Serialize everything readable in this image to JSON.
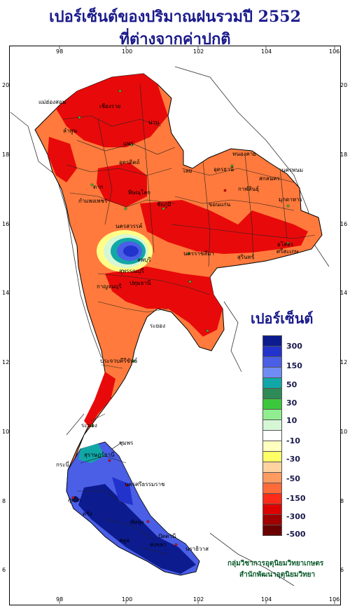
{
  "title_line1": "เปอร์เซ็นต์ของปริมาณฝนรวมปี  2552",
  "title_line2": "ที่ต่างจากค่าปกติ",
  "lon_ticks": [
    "98",
    "100",
    "102",
    "104",
    "106"
  ],
  "lat_ticks": [
    "20",
    "18",
    "16",
    "14",
    "12",
    "10",
    "8",
    "6"
  ],
  "legend": {
    "title": "เปอร์เซ็นต์",
    "colors": [
      "#0c1b8e",
      "#2233cc",
      "#4a5fe6",
      "#6f8cf5",
      "#12a7a7",
      "#2e8b57",
      "#3cc83c",
      "#90ee90",
      "#d6f7d6",
      "#ffffff",
      "#ffffc0",
      "#ffff66",
      "#ffd2a0",
      "#ff9a60",
      "#ff6a3a",
      "#ff2a1a",
      "#dd0000",
      "#a00000",
      "#6a0000"
    ],
    "labels": [
      "300",
      "150",
      "50",
      "30",
      "10",
      "-10",
      "-30",
      "-50",
      "-150",
      "-300",
      "-500"
    ]
  },
  "credit_line1": "กลุ่มวิชาการอุตุนิยมวิทยาเกษตร",
  "credit_line2": "สำนักพัฒนาอุตุนิยมวิทยา",
  "provinces": [
    "เชียงราย",
    "น่าน",
    "ลำพูน",
    "แพร่",
    "ตาก",
    "อุตรดิตถ์",
    "พิษณุโลก",
    "กำแพงเพชร",
    "นครสวรรค์",
    "เลย",
    "หนองคาย",
    "อุดรธานี",
    "สกลนคร",
    "นครพนม",
    "กาฬสินธุ์",
    "มุกดาหาร",
    "ขอนแก่น",
    "ชัยภูมิ",
    "ลพบุรี",
    "สุพรรณบุรี",
    "กาญจนบุรี",
    "ปทุมธานี",
    "นครราชสีมา",
    "ยโสธร",
    "ศรีสะเกษ",
    "สุรินทร์",
    "ระยอง",
    "ประจวบคีรีขันธ์",
    "ระนอง",
    "ชุมพร",
    "สุราษฎร์ธานี",
    "นครศรีธรรมราช",
    "กระบี่",
    "ตรัง",
    "พัทลุง",
    "สตูล",
    "ปัตตานี",
    "นราธิวาส",
    "สงขลา",
    "ภูเก็ต",
    "แม่ฮ่องสอน"
  ]
}
